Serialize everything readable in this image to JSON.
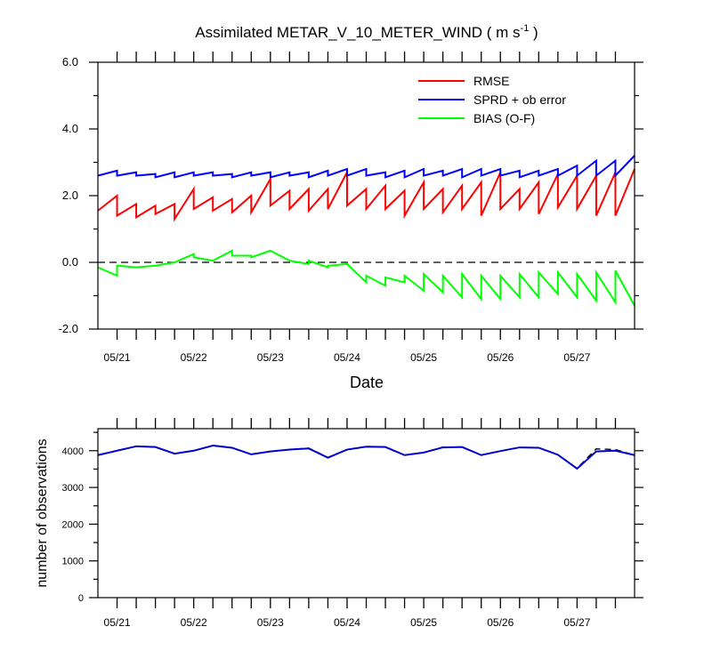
{
  "chart_data": [
    {
      "type": "line",
      "title": "Assimilated METAR_V_10_METER_WIND ( m s",
      "title_sup": "-1",
      "title_end": " )",
      "xlabel": "Date",
      "ylabel": "",
      "ylim": [
        -2.0,
        6.0
      ],
      "yticks": [
        "-2.0",
        "0.0",
        "2.0",
        "4.0",
        "6.0"
      ],
      "ytick_values": [
        -2,
        0,
        2,
        4,
        6
      ],
      "xlim": [
        0,
        28
      ],
      "xtick_values": [
        1,
        5,
        9,
        13,
        17,
        21,
        25
      ],
      "xtick_labels": [
        "05/21",
        "05/22",
        "05/23",
        "05/24",
        "05/25",
        "05/26",
        "05/27"
      ],
      "reference_line": 0,
      "legend_position": "top-right",
      "series": [
        {
          "name": "RMSE",
          "color": "#ff0000",
          "points": [
            [
              0,
              1.55
            ],
            [
              1,
              2.0
            ],
            [
              1,
              1.4
            ],
            [
              2,
              1.75
            ],
            [
              2,
              1.35
            ],
            [
              3,
              1.7
            ],
            [
              3,
              1.45
            ],
            [
              4,
              1.75
            ],
            [
              4,
              1.3
            ],
            [
              5,
              2.2
            ],
            [
              5,
              1.6
            ],
            [
              6,
              1.95
            ],
            [
              6,
              1.55
            ],
            [
              7,
              1.9
            ],
            [
              7,
              1.5
            ],
            [
              8,
              2.0
            ],
            [
              8,
              1.5
            ],
            [
              9,
              2.5
            ],
            [
              9,
              1.7
            ],
            [
              10,
              2.15
            ],
            [
              10,
              1.6
            ],
            [
              11,
              2.2
            ],
            [
              11,
              1.55
            ],
            [
              12,
              2.2
            ],
            [
              12,
              1.6
            ],
            [
              13,
              2.7
            ],
            [
              13,
              1.7
            ],
            [
              14,
              2.2
            ],
            [
              14,
              1.6
            ],
            [
              15,
              2.3
            ],
            [
              15,
              1.6
            ],
            [
              16,
              2.15
            ],
            [
              16,
              1.4
            ],
            [
              17,
              2.4
            ],
            [
              17,
              1.6
            ],
            [
              18,
              2.2
            ],
            [
              18,
              1.5
            ],
            [
              19,
              2.3
            ],
            [
              19,
              1.6
            ],
            [
              20,
              2.4
            ],
            [
              20,
              1.4
            ],
            [
              21,
              2.7
            ],
            [
              21,
              1.6
            ],
            [
              22,
              2.2
            ],
            [
              22,
              1.6
            ],
            [
              23,
              2.4
            ],
            [
              23,
              1.45
            ],
            [
              24,
              2.65
            ],
            [
              24,
              1.65
            ],
            [
              25,
              2.6
            ],
            [
              25,
              1.6
            ],
            [
              26,
              2.6
            ],
            [
              26,
              1.4
            ],
            [
              27,
              2.7
            ],
            [
              27,
              1.4
            ],
            [
              28,
              2.8
            ]
          ]
        },
        {
          "name": "SPRD + ob error",
          "color": "#0000ff",
          "points": [
            [
              0,
              2.6
            ],
            [
              1,
              2.75
            ],
            [
              1,
              2.6
            ],
            [
              2,
              2.7
            ],
            [
              2,
              2.6
            ],
            [
              3,
              2.65
            ],
            [
              3,
              2.55
            ],
            [
              4,
              2.7
            ],
            [
              4,
              2.55
            ],
            [
              5,
              2.7
            ],
            [
              5,
              2.6
            ],
            [
              6,
              2.7
            ],
            [
              6,
              2.6
            ],
            [
              7,
              2.65
            ],
            [
              7,
              2.55
            ],
            [
              8,
              2.7
            ],
            [
              8,
              2.6
            ],
            [
              9,
              2.7
            ],
            [
              9,
              2.55
            ],
            [
              10,
              2.7
            ],
            [
              10,
              2.6
            ],
            [
              11,
              2.7
            ],
            [
              11,
              2.55
            ],
            [
              12,
              2.75
            ],
            [
              12,
              2.6
            ],
            [
              13,
              2.8
            ],
            [
              13,
              2.6
            ],
            [
              14,
              2.8
            ],
            [
              14,
              2.6
            ],
            [
              15,
              2.7
            ],
            [
              15,
              2.55
            ],
            [
              16,
              2.75
            ],
            [
              16,
              2.55
            ],
            [
              17,
              2.8
            ],
            [
              17,
              2.6
            ],
            [
              18,
              2.75
            ],
            [
              18,
              2.6
            ],
            [
              19,
              2.8
            ],
            [
              19,
              2.55
            ],
            [
              20,
              2.8
            ],
            [
              20,
              2.6
            ],
            [
              21,
              2.8
            ],
            [
              21,
              2.6
            ],
            [
              22,
              2.75
            ],
            [
              22,
              2.55
            ],
            [
              23,
              2.75
            ],
            [
              23,
              2.6
            ],
            [
              24,
              2.8
            ],
            [
              24,
              2.6
            ],
            [
              25,
              2.9
            ],
            [
              25,
              2.6
            ],
            [
              26,
              3.05
            ],
            [
              26,
              2.6
            ],
            [
              27,
              3.05
            ],
            [
              27,
              2.6
            ],
            [
              28,
              3.2
            ]
          ]
        },
        {
          "name": "BIAS (O-F)",
          "color": "#00ff00",
          "points": [
            [
              0,
              -0.15
            ],
            [
              1,
              -0.4
            ],
            [
              1,
              -0.1
            ],
            [
              2,
              -0.15
            ],
            [
              3,
              -0.1
            ],
            [
              4,
              0.0
            ],
            [
              5,
              0.25
            ],
            [
              5,
              0.15
            ],
            [
              6,
              0.05
            ],
            [
              7,
              0.35
            ],
            [
              7,
              0.2
            ],
            [
              8,
              0.2
            ],
            [
              8,
              0.15
            ],
            [
              9,
              0.35
            ],
            [
              10,
              0.05
            ],
            [
              11,
              -0.05
            ],
            [
              11,
              0.05
            ],
            [
              12,
              -0.15
            ],
            [
              12,
              -0.1
            ],
            [
              13,
              -0.05
            ],
            [
              14,
              -0.6
            ],
            [
              14,
              -0.4
            ],
            [
              15,
              -0.7
            ],
            [
              15,
              -0.45
            ],
            [
              16,
              -0.6
            ],
            [
              16,
              -0.4
            ],
            [
              17,
              -0.85
            ],
            [
              17,
              -0.35
            ],
            [
              18,
              -0.9
            ],
            [
              18,
              -0.4
            ],
            [
              19,
              -1.05
            ],
            [
              19,
              -0.35
            ],
            [
              20,
              -1.1
            ],
            [
              20,
              -0.4
            ],
            [
              21,
              -1.1
            ],
            [
              21,
              -0.4
            ],
            [
              22,
              -1.05
            ],
            [
              22,
              -0.35
            ],
            [
              23,
              -1.05
            ],
            [
              23,
              -0.3
            ],
            [
              24,
              -0.95
            ],
            [
              24,
              -0.3
            ],
            [
              25,
              -1.05
            ],
            [
              25,
              -0.35
            ],
            [
              26,
              -1.15
            ],
            [
              26,
              -0.3
            ],
            [
              27,
              -1.2
            ],
            [
              27,
              -0.25
            ],
            [
              28,
              -1.3
            ]
          ]
        }
      ]
    },
    {
      "type": "line",
      "title": "",
      "xlabel": "",
      "ylabel": "number of observations",
      "ylim": [
        0,
        4600
      ],
      "yticks": [
        "0",
        "1000",
        "2000",
        "3000",
        "4000"
      ],
      "ytick_values": [
        0,
        1000,
        2000,
        3000,
        4000
      ],
      "xlim": [
        0,
        28
      ],
      "xtick_values": [
        1,
        5,
        9,
        13,
        17,
        21,
        25
      ],
      "xtick_labels": [
        "05/21",
        "05/22",
        "05/23",
        "05/24",
        "05/25",
        "05/26",
        "05/27"
      ],
      "series": [
        {
          "color": "#000000",
          "dashed": true,
          "points": [
            [
              0,
              3880
            ],
            [
              1,
              4000
            ],
            [
              2,
              4120
            ],
            [
              3,
              4100
            ],
            [
              4,
              3920
            ],
            [
              5,
              4000
            ],
            [
              6,
              4140
            ],
            [
              7,
              4080
            ],
            [
              8,
              3900
            ],
            [
              9,
              3980
            ],
            [
              10,
              4030
            ],
            [
              11,
              4070
            ],
            [
              12,
              3820
            ],
            [
              13,
              4030
            ],
            [
              14,
              4110
            ],
            [
              15,
              4100
            ],
            [
              16,
              3880
            ],
            [
              17,
              3950
            ],
            [
              18,
              4100
            ],
            [
              19,
              4100
            ],
            [
              20,
              3880
            ],
            [
              21,
              3990
            ],
            [
              22,
              4090
            ],
            [
              23,
              4080
            ],
            [
              24,
              3890
            ],
            [
              25,
              3520
            ],
            [
              26,
              4050
            ],
            [
              27,
              4030
            ],
            [
              28,
              3880
            ]
          ]
        },
        {
          "color": "#0000cc",
          "points": [
            [
              0,
              3880
            ],
            [
              1,
              4000
            ],
            [
              2,
              4120
            ],
            [
              3,
              4100
            ],
            [
              4,
              3920
            ],
            [
              5,
              4000
            ],
            [
              6,
              4140
            ],
            [
              7,
              4080
            ],
            [
              8,
              3900
            ],
            [
              9,
              3980
            ],
            [
              10,
              4030
            ],
            [
              11,
              4060
            ],
            [
              12,
              3810
            ],
            [
              13,
              4030
            ],
            [
              14,
              4110
            ],
            [
              15,
              4100
            ],
            [
              16,
              3880
            ],
            [
              17,
              3950
            ],
            [
              18,
              4090
            ],
            [
              19,
              4100
            ],
            [
              20,
              3880
            ],
            [
              21,
              3990
            ],
            [
              22,
              4090
            ],
            [
              23,
              4080
            ],
            [
              24,
              3890
            ],
            [
              25,
              3510
            ],
            [
              26,
              3980
            ],
            [
              27,
              4000
            ],
            [
              28,
              3880
            ]
          ]
        }
      ]
    }
  ]
}
